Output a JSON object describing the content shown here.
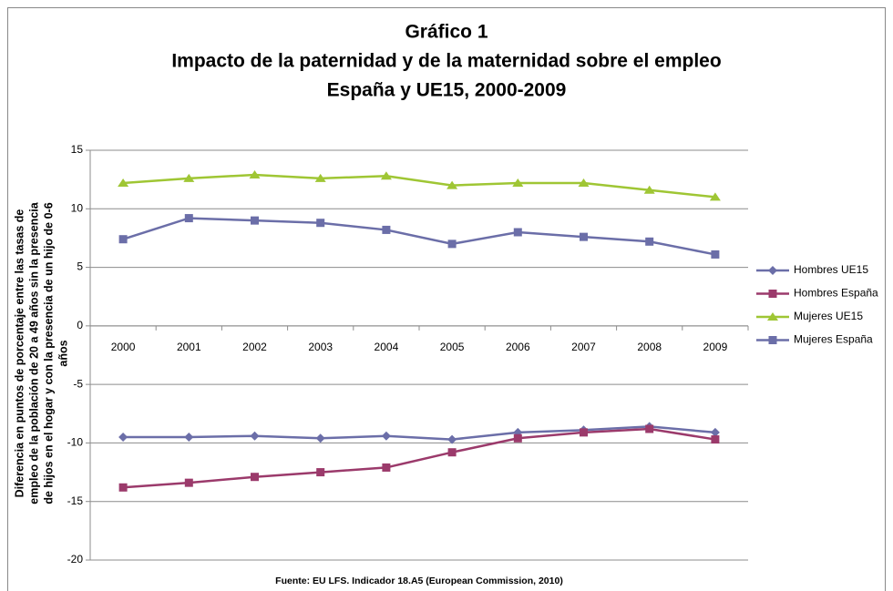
{
  "chart_data": {
    "type": "line",
    "title": [
      "Gráfico 1",
      "Impacto de la paternidad y de la maternidad sobre el empleo",
      "España y UE15, 2000-2009"
    ],
    "ylabel": [
      "Diferencia en puntos de porcentaje entre las tasas de",
      "empleo de la población de 20 a 49 años sin la presencia",
      "de hijos en el hogar y con la presencia de un hijo de 0-6",
      "años"
    ],
    "source": "Fuente: EU LFS. Indicador 18.A5 (European Commission, 2010)",
    "categories": [
      "2000",
      "2001",
      "2002",
      "2003",
      "2004",
      "2005",
      "2006",
      "2007",
      "2008",
      "2009"
    ],
    "series": [
      {
        "name": "Hombres UE15",
        "color": "#6b6ea8",
        "marker": "diamond",
        "values": [
          -9.5,
          -9.5,
          -9.4,
          -9.6,
          -9.4,
          -9.7,
          -9.1,
          -8.9,
          -8.6,
          -9.1
        ]
      },
      {
        "name": "Hombres España",
        "color": "#9b3a6b",
        "marker": "square",
        "values": [
          -13.8,
          -13.4,
          -12.9,
          -12.5,
          -12.1,
          -10.8,
          -9.6,
          -9.1,
          -8.8,
          -9.7
        ]
      },
      {
        "name": "Mujeres UE15",
        "color": "#9fc634",
        "marker": "triangle",
        "values": [
          12.2,
          12.6,
          12.9,
          12.6,
          12.8,
          12.0,
          12.2,
          12.2,
          11.6,
          11.0
        ]
      },
      {
        "name": "Mujeres España",
        "color": "#6b6ea8",
        "marker": "square",
        "values": [
          7.4,
          9.2,
          9.0,
          8.8,
          8.2,
          7.0,
          8.0,
          7.6,
          7.2,
          6.1
        ]
      }
    ],
    "ylim": [
      -20,
      15
    ],
    "yticks": [
      -20,
      -15,
      -10,
      -5,
      0,
      5,
      10,
      15
    ],
    "grid": true,
    "legend": "right"
  }
}
